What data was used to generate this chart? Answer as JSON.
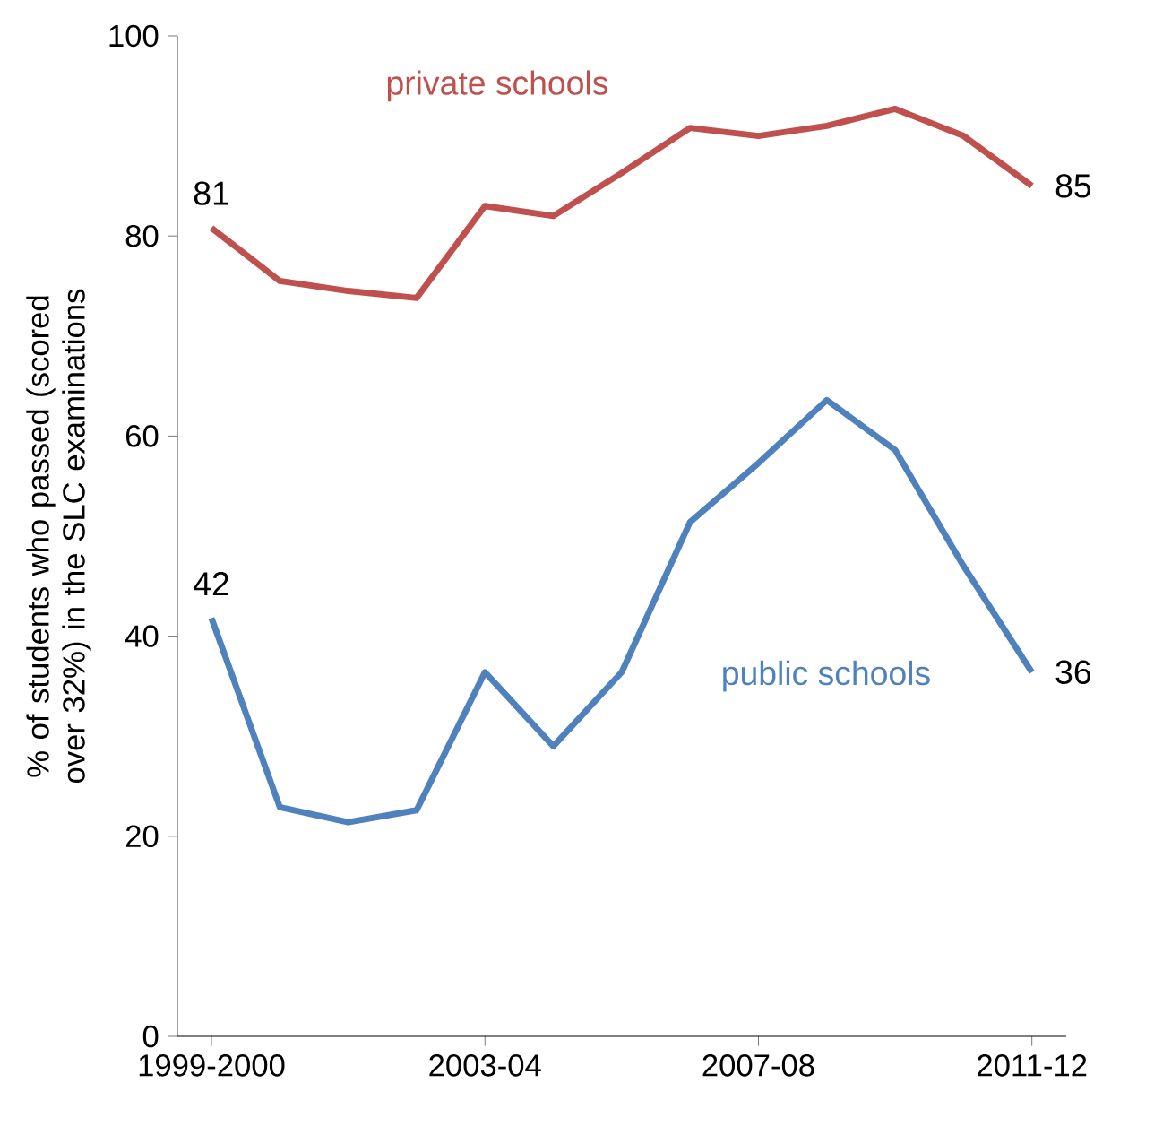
{
  "chart_data": {
    "type": "line",
    "ylabel": "% of students who passed (scored over 32%) in the SLC examinations",
    "categories": [
      "1999-2000",
      null,
      null,
      null,
      "2003-04",
      null,
      null,
      null,
      "2007-08",
      null,
      null,
      null,
      "2011-12"
    ],
    "series": [
      {
        "name": "private schools",
        "color": "#c0504d",
        "values": [
          80.8,
          75.5,
          74.5,
          73.8,
          83,
          82,
          86.3,
          90.8,
          90,
          91,
          92.7,
          90,
          85
        ],
        "value_labels": [
          "81",
          null,
          null,
          null,
          null,
          null,
          null,
          null,
          null,
          null,
          null,
          null,
          "85"
        ]
      },
      {
        "name": "public schools",
        "color": "#4f81bd",
        "values": [
          41.8,
          22.9,
          21.4,
          22.6,
          36.4,
          29,
          36.4,
          51.4,
          57.3,
          63.6,
          58.6,
          47,
          36.4
        ],
        "value_labels": [
          "42",
          null,
          null,
          null,
          null,
          null,
          null,
          null,
          null,
          null,
          null,
          null,
          "36"
        ]
      }
    ],
    "ylim": [
      0,
      100
    ],
    "yticks": [
      0,
      20,
      40,
      60,
      80,
      100
    ],
    "marker": "none",
    "line_style": "solid"
  }
}
